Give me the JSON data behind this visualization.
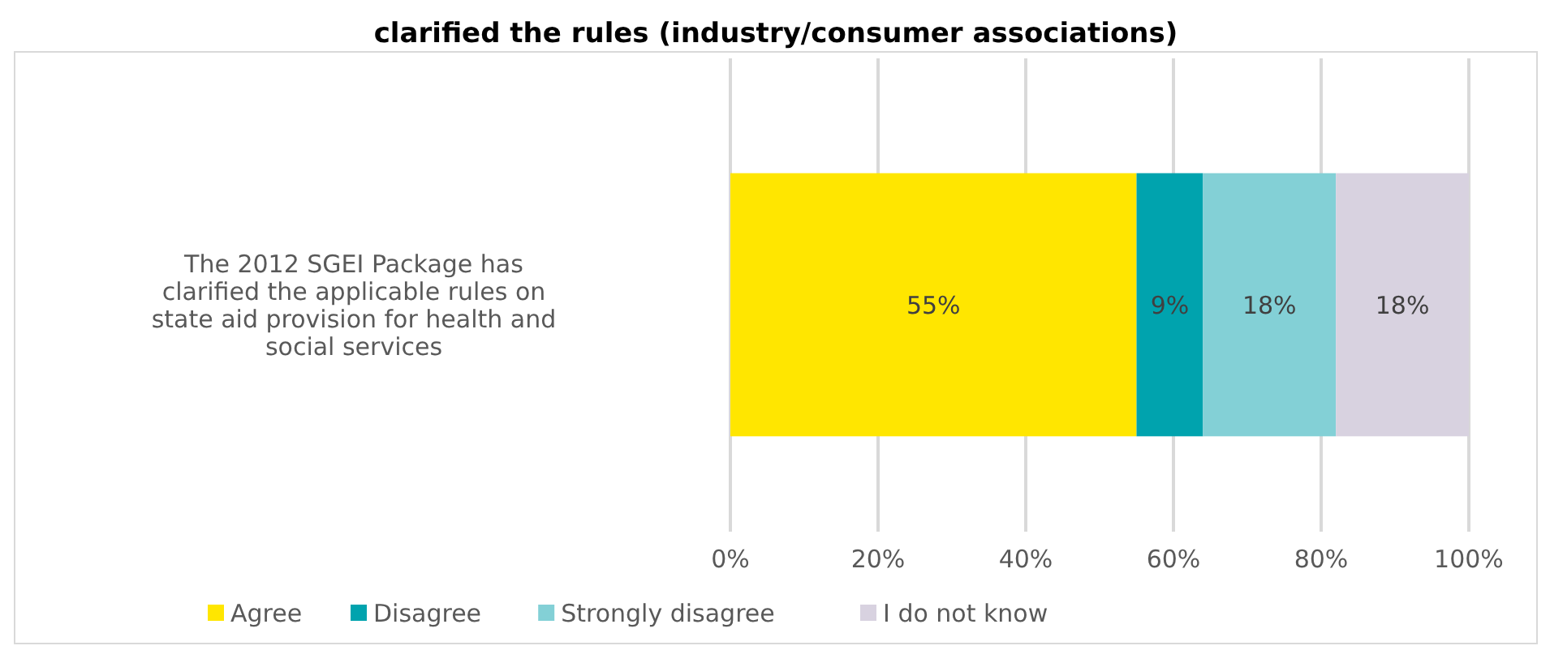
{
  "chart_data": {
    "type": "bar",
    "orientation": "horizontal",
    "stacked": true,
    "title": "clarified the rules (industry/consumer associations)",
    "categories": [
      "The 2012 SGEI Package has clarified the applicable rules on state aid provision for health and social services"
    ],
    "series": [
      {
        "name": "Agree",
        "color": "#ffe600",
        "values": [
          55
        ],
        "value_labels": [
          "55%"
        ]
      },
      {
        "name": "Disagree",
        "color": "#00a3ae",
        "values": [
          9
        ],
        "value_labels": [
          "9%"
        ]
      },
      {
        "name": "Strongly disagree",
        "color": "#83d0d6",
        "values": [
          18
        ],
        "value_labels": [
          "18%"
        ]
      },
      {
        "name": "I do not know",
        "color": "#d8d2e0",
        "values": [
          18
        ],
        "value_labels": [
          "18%"
        ]
      }
    ],
    "xlim": [
      0,
      100
    ],
    "xticks": [
      {
        "value": 0,
        "label": "0%"
      },
      {
        "value": 20,
        "label": "20%"
      },
      {
        "value": 40,
        "label": "40%"
      },
      {
        "value": 60,
        "label": "60%"
      },
      {
        "value": 80,
        "label": "80%"
      },
      {
        "value": 100,
        "label": "100%"
      }
    ],
    "grid": "x",
    "legend": "bottom"
  }
}
